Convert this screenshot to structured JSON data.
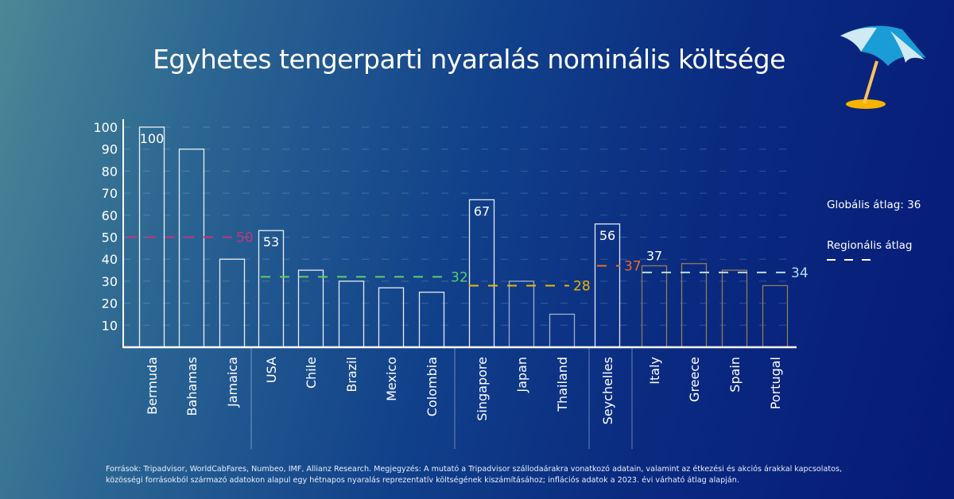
{
  "title": "Egyhetes tengerparti nyaralás nominális költsége",
  "legend": {
    "global": "Globális átlag: 36",
    "regional": "Regionális átlag"
  },
  "footer": "Források: Tripadvisor, WorldCabFares, Numbeo, IMF, Allianz Research. Megjegyzés: A mutató a Tripadvisor szállodaárakra vonatkozó adatain, valamint az étkezési és akciós árakkal kapcsolatos, közösségi forrásokból származó adatokon alapul egy hétnapos nyaralás reprezentatív költségének kiszámításához; inflációs adatok a 2023. évi várható átlag alapján.",
  "decoration": {
    "icon": "beach-umbrella-icon"
  },
  "chart_data": {
    "type": "bar",
    "title": "Egyhetes tengerparti nyaralás nominális költsége",
    "ylim": [
      0,
      100
    ],
    "yticks": [
      10,
      20,
      30,
      40,
      50,
      60,
      70,
      80,
      90,
      100
    ],
    "grid": true,
    "categories": [
      "Bermuda",
      "Bahamas",
      "Jamaica",
      "USA",
      "Chile",
      "Brazil",
      "Mexico",
      "Colombia",
      "Singapore",
      "Japan",
      "Thailand",
      "Seychelles",
      "Italy",
      "Greece",
      "Spain",
      "Portugal"
    ],
    "values": [
      100,
      90,
      40,
      53,
      35,
      30,
      27,
      25,
      67,
      30,
      15,
      56,
      37,
      38,
      35,
      28
    ],
    "data_labels": [
      "100",
      "",
      "",
      "53",
      "",
      "",
      "",
      "",
      "67",
      "",
      "",
      "56",
      "37",
      "",
      "",
      ""
    ],
    "groups": [
      {
        "members": [
          0,
          1,
          2
        ],
        "average": 50,
        "average_label": "50",
        "color": "#c8327a",
        "bar_color": "#ffffff"
      },
      {
        "members": [
          3,
          4,
          5,
          6,
          7
        ],
        "average": 32,
        "average_label": "32",
        "color": "#5ecf6a",
        "bar_color": "#ffffff"
      },
      {
        "members": [
          8,
          9,
          10
        ],
        "average": 28,
        "average_label": "28",
        "color": "#f0b400",
        "bar_color": "#ffffff"
      },
      {
        "members": [
          11
        ],
        "average": 37,
        "average_label": "37",
        "color": "#f26a1e",
        "bar_color": "#ffffff"
      },
      {
        "members": [
          12,
          13,
          14,
          15
        ],
        "average": 34,
        "average_label": "34",
        "color": "#b8dcf0",
        "bar_color": "#a08850"
      }
    ],
    "global_average": 36
  }
}
